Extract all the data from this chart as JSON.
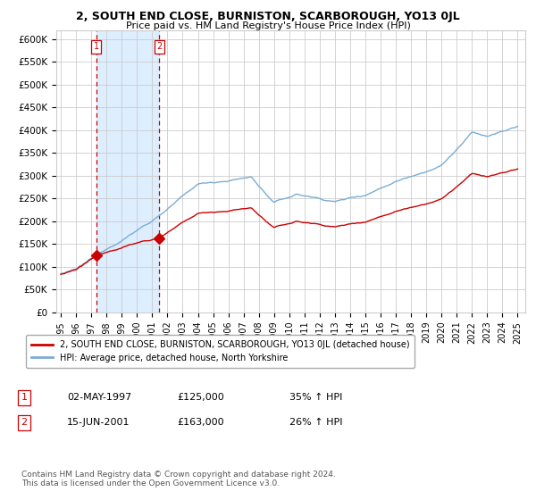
{
  "title": "2, SOUTH END CLOSE, BURNISTON, SCARBOROUGH, YO13 0JL",
  "subtitle": "Price paid vs. HM Land Registry's House Price Index (HPI)",
  "legend_line1": "2, SOUTH END CLOSE, BURNISTON, SCARBOROUGH, YO13 0JL (detached house)",
  "legend_line2": "HPI: Average price, detached house, North Yorkshire",
  "footnote": "Contains HM Land Registry data © Crown copyright and database right 2024.\nThis data is licensed under the Open Government Licence v3.0.",
  "t1_date": "02-MAY-1997",
  "t1_price": "£125,000",
  "t1_hpi": "35% ↑ HPI",
  "t1_x": 1997.333,
  "t1_y": 125000,
  "t2_date": "15-JUN-2001",
  "t2_price": "£163,000",
  "t2_hpi": "26% ↑ HPI",
  "t2_x": 2001.458,
  "t2_y": 163000,
  "line_color_red": "#cc0000",
  "line_color_blue": "#7aadd4",
  "vline_color": "#cc0000",
  "shaded_color": "#ddeeff",
  "background_color": "#ffffff",
  "grid_color": "#cccccc",
  "ylim": [
    0,
    620000
  ],
  "yticks": [
    0,
    50000,
    100000,
    150000,
    200000,
    250000,
    300000,
    350000,
    400000,
    450000,
    500000,
    550000,
    600000
  ],
  "ytick_labels": [
    "£0",
    "£50K",
    "£100K",
    "£150K",
    "£200K",
    "£250K",
    "£300K",
    "£350K",
    "£400K",
    "£450K",
    "£500K",
    "£550K",
    "£600K"
  ],
  "x_start_year": 1995,
  "x_end_year": 2025,
  "xtick_years": [
    1995,
    1996,
    1997,
    1998,
    1999,
    2000,
    2001,
    2002,
    2003,
    2004,
    2005,
    2006,
    2007,
    2008,
    2009,
    2010,
    2011,
    2012,
    2013,
    2014,
    2015,
    2016,
    2017,
    2018,
    2019,
    2020,
    2021,
    2022,
    2023,
    2024,
    2025
  ]
}
